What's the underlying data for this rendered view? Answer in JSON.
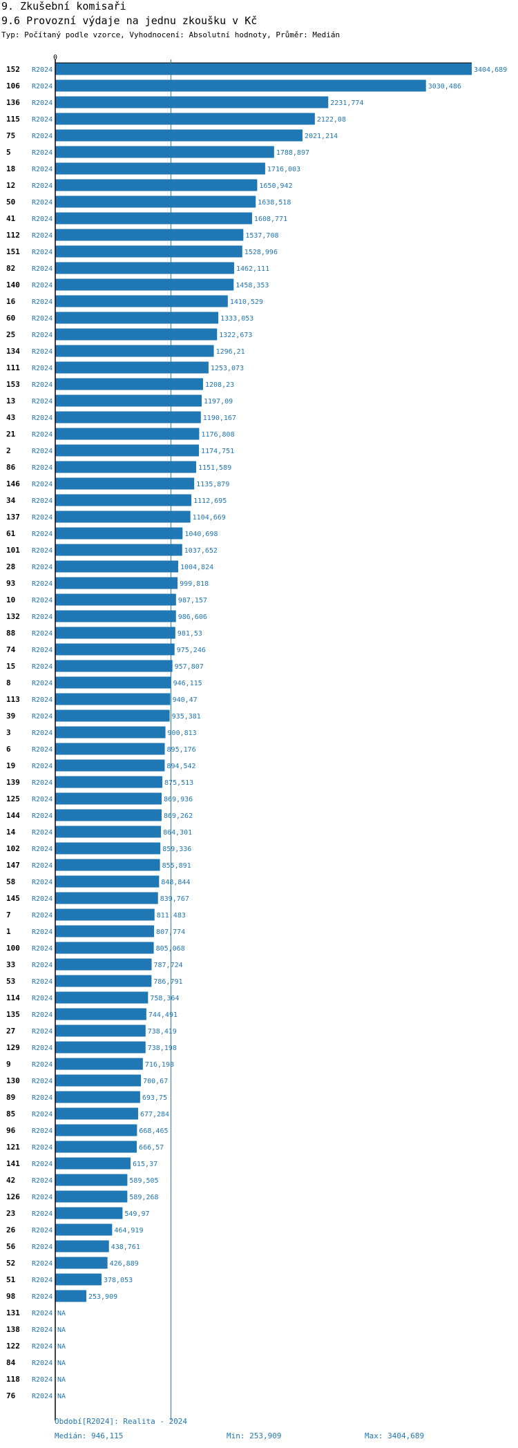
{
  "header": {
    "title": "9. Zkušební komisaři",
    "subtitle": "9.6 Provozní výdaje na jednu zkoušku v Kč",
    "type_line": "Typ: Počítaný podle vzorce, Vyhodnocení: Absolutní hodnoty, Průměr: Medián"
  },
  "chart_data": {
    "type": "bar",
    "orientation": "horizontal",
    "x_axis_start_label": "0",
    "xlim": [
      0,
      3404.689
    ],
    "median_line": 946.115,
    "period_label": "R2024",
    "bar_color": "#1f77b4",
    "value_label_color": "#1f77b4",
    "missing_label": "NA",
    "rows": [
      {
        "id": "152",
        "period": "R2024",
        "value": 3404.689,
        "label": "3404,689"
      },
      {
        "id": "106",
        "period": "R2024",
        "value": 3030.486,
        "label": "3030,486"
      },
      {
        "id": "136",
        "period": "R2024",
        "value": 2231.774,
        "label": "2231,774"
      },
      {
        "id": "115",
        "period": "R2024",
        "value": 2122.08,
        "label": "2122,08"
      },
      {
        "id": "75",
        "period": "R2024",
        "value": 2021.214,
        "label": "2021,214"
      },
      {
        "id": "5",
        "period": "R2024",
        "value": 1788.897,
        "label": "1788,897"
      },
      {
        "id": "18",
        "period": "R2024",
        "value": 1716.003,
        "label": "1716,003"
      },
      {
        "id": "12",
        "period": "R2024",
        "value": 1650.942,
        "label": "1650,942"
      },
      {
        "id": "50",
        "period": "R2024",
        "value": 1638.518,
        "label": "1638,518"
      },
      {
        "id": "41",
        "period": "R2024",
        "value": 1608.771,
        "label": "1608,771"
      },
      {
        "id": "112",
        "period": "R2024",
        "value": 1537.708,
        "label": "1537,708"
      },
      {
        "id": "151",
        "period": "R2024",
        "value": 1528.996,
        "label": "1528,996"
      },
      {
        "id": "82",
        "period": "R2024",
        "value": 1462.111,
        "label": "1462,111"
      },
      {
        "id": "140",
        "period": "R2024",
        "value": 1458.353,
        "label": "1458,353"
      },
      {
        "id": "16",
        "period": "R2024",
        "value": 1410.529,
        "label": "1410,529"
      },
      {
        "id": "60",
        "period": "R2024",
        "value": 1333.053,
        "label": "1333,053"
      },
      {
        "id": "25",
        "period": "R2024",
        "value": 1322.673,
        "label": "1322,673"
      },
      {
        "id": "134",
        "period": "R2024",
        "value": 1296.21,
        "label": "1296,21"
      },
      {
        "id": "111",
        "period": "R2024",
        "value": 1253.073,
        "label": "1253,073"
      },
      {
        "id": "153",
        "period": "R2024",
        "value": 1208.23,
        "label": "1208,23"
      },
      {
        "id": "13",
        "period": "R2024",
        "value": 1197.09,
        "label": "1197,09"
      },
      {
        "id": "43",
        "period": "R2024",
        "value": 1190.167,
        "label": "1190,167"
      },
      {
        "id": "21",
        "period": "R2024",
        "value": 1176.808,
        "label": "1176,808"
      },
      {
        "id": "2",
        "period": "R2024",
        "value": 1174.751,
        "label": "1174,751"
      },
      {
        "id": "86",
        "period": "R2024",
        "value": 1151.589,
        "label": "1151,589"
      },
      {
        "id": "146",
        "period": "R2024",
        "value": 1135.879,
        "label": "1135,879"
      },
      {
        "id": "34",
        "period": "R2024",
        "value": 1112.695,
        "label": "1112,695"
      },
      {
        "id": "137",
        "period": "R2024",
        "value": 1104.669,
        "label": "1104,669"
      },
      {
        "id": "61",
        "period": "R2024",
        "value": 1040.698,
        "label": "1040,698"
      },
      {
        "id": "101",
        "period": "R2024",
        "value": 1037.652,
        "label": "1037,652"
      },
      {
        "id": "28",
        "period": "R2024",
        "value": 1004.824,
        "label": "1004,824"
      },
      {
        "id": "93",
        "period": "R2024",
        "value": 999.818,
        "label": "999,818"
      },
      {
        "id": "10",
        "period": "R2024",
        "value": 987.157,
        "label": "987,157"
      },
      {
        "id": "132",
        "period": "R2024",
        "value": 986.606,
        "label": "986,606"
      },
      {
        "id": "88",
        "period": "R2024",
        "value": 981.53,
        "label": "981,53"
      },
      {
        "id": "74",
        "period": "R2024",
        "value": 975.246,
        "label": "975,246"
      },
      {
        "id": "15",
        "period": "R2024",
        "value": 957.807,
        "label": "957,807"
      },
      {
        "id": "8",
        "period": "R2024",
        "value": 946.115,
        "label": "946,115"
      },
      {
        "id": "113",
        "period": "R2024",
        "value": 940.47,
        "label": "940,47"
      },
      {
        "id": "39",
        "period": "R2024",
        "value": 935.381,
        "label": "935,381"
      },
      {
        "id": "3",
        "period": "R2024",
        "value": 900.813,
        "label": "900,813"
      },
      {
        "id": "6",
        "period": "R2024",
        "value": 895.176,
        "label": "895,176"
      },
      {
        "id": "19",
        "period": "R2024",
        "value": 894.542,
        "label": "894,542"
      },
      {
        "id": "139",
        "period": "R2024",
        "value": 875.513,
        "label": "875,513"
      },
      {
        "id": "125",
        "period": "R2024",
        "value": 869.936,
        "label": "869,936"
      },
      {
        "id": "144",
        "period": "R2024",
        "value": 869.262,
        "label": "869,262"
      },
      {
        "id": "14",
        "period": "R2024",
        "value": 864.301,
        "label": "864,301"
      },
      {
        "id": "102",
        "period": "R2024",
        "value": 859.336,
        "label": "859,336"
      },
      {
        "id": "147",
        "period": "R2024",
        "value": 855.891,
        "label": "855,891"
      },
      {
        "id": "58",
        "period": "R2024",
        "value": 848.844,
        "label": "848,844"
      },
      {
        "id": "145",
        "period": "R2024",
        "value": 839.767,
        "label": "839,767"
      },
      {
        "id": "7",
        "period": "R2024",
        "value": 811.483,
        "label": "811,483"
      },
      {
        "id": "1",
        "period": "R2024",
        "value": 807.774,
        "label": "807,774"
      },
      {
        "id": "100",
        "period": "R2024",
        "value": 805.068,
        "label": "805,068"
      },
      {
        "id": "33",
        "period": "R2024",
        "value": 787.724,
        "label": "787,724"
      },
      {
        "id": "53",
        "period": "R2024",
        "value": 786.791,
        "label": "786,791"
      },
      {
        "id": "114",
        "period": "R2024",
        "value": 758.364,
        "label": "758,364"
      },
      {
        "id": "135",
        "period": "R2024",
        "value": 744.491,
        "label": "744,491"
      },
      {
        "id": "27",
        "period": "R2024",
        "value": 738.419,
        "label": "738,419"
      },
      {
        "id": "129",
        "period": "R2024",
        "value": 738.198,
        "label": "738,198"
      },
      {
        "id": "9",
        "period": "R2024",
        "value": 716.198,
        "label": "716,198"
      },
      {
        "id": "130",
        "period": "R2024",
        "value": 700.67,
        "label": "700,67"
      },
      {
        "id": "89",
        "period": "R2024",
        "value": 693.75,
        "label": "693,75"
      },
      {
        "id": "85",
        "period": "R2024",
        "value": 677.284,
        "label": "677,284"
      },
      {
        "id": "96",
        "period": "R2024",
        "value": 668.465,
        "label": "668,465"
      },
      {
        "id": "121",
        "period": "R2024",
        "value": 666.57,
        "label": "666,57"
      },
      {
        "id": "141",
        "period": "R2024",
        "value": 615.37,
        "label": "615,37"
      },
      {
        "id": "42",
        "period": "R2024",
        "value": 589.505,
        "label": "589,505"
      },
      {
        "id": "126",
        "period": "R2024",
        "value": 589.268,
        "label": "589,268"
      },
      {
        "id": "23",
        "period": "R2024",
        "value": 549.97,
        "label": "549,97"
      },
      {
        "id": "26",
        "period": "R2024",
        "value": 464.919,
        "label": "464,919"
      },
      {
        "id": "56",
        "period": "R2024",
        "value": 438.761,
        "label": "438,761"
      },
      {
        "id": "52",
        "period": "R2024",
        "value": 426.889,
        "label": "426,889"
      },
      {
        "id": "51",
        "period": "R2024",
        "value": 378.053,
        "label": "378,053"
      },
      {
        "id": "98",
        "period": "R2024",
        "value": 253.909,
        "label": "253,909"
      },
      {
        "id": "131",
        "period": "R2024",
        "value": null,
        "label": "NA"
      },
      {
        "id": "138",
        "period": "R2024",
        "value": null,
        "label": "NA"
      },
      {
        "id": "122",
        "period": "R2024",
        "value": null,
        "label": "NA"
      },
      {
        "id": "84",
        "period": "R2024",
        "value": null,
        "label": "NA"
      },
      {
        "id": "118",
        "period": "R2024",
        "value": null,
        "label": "NA"
      },
      {
        "id": "76",
        "period": "R2024",
        "value": null,
        "label": "NA"
      }
    ]
  },
  "footer": {
    "period_text": "Období[R2024]: Realita - 2024",
    "median_text": "Medián: 946,115",
    "min_text": "Min: 253,909",
    "max_text": "Max: 3404,689"
  }
}
